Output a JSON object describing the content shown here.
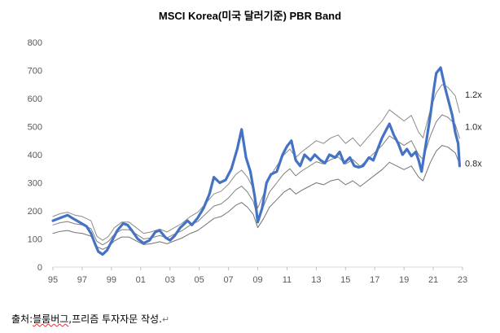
{
  "chart_data": {
    "type": "line",
    "title": "MSCI Korea(미국 달러기준) PBR Band",
    "xlabel": "",
    "ylabel": "",
    "xlim": [
      1995,
      2023
    ],
    "ylim": [
      0,
      800
    ],
    "x_ticks": [
      "95",
      "97",
      "99",
      "01",
      "03",
      "05",
      "07",
      "09",
      "11",
      "13",
      "15",
      "17",
      "19",
      "21",
      "23"
    ],
    "y_ticks": [
      "0",
      "100",
      "200",
      "300",
      "400",
      "500",
      "600",
      "700",
      "800"
    ],
    "grid": false,
    "band_labels": [
      "1.2x",
      "1.0x",
      "0.8x"
    ],
    "series": [
      {
        "name": "MSCI Korea",
        "color": "#4472C4",
        "points": [
          [
            1995.0,
            165
          ],
          [
            1995.5,
            175
          ],
          [
            1996.0,
            185
          ],
          [
            1996.3,
            175
          ],
          [
            1996.8,
            160
          ],
          [
            1997.3,
            145
          ],
          [
            1997.6,
            120
          ],
          [
            1997.9,
            80
          ],
          [
            1998.1,
            55
          ],
          [
            1998.4,
            45
          ],
          [
            1998.7,
            60
          ],
          [
            1999.0,
            90
          ],
          [
            1999.4,
            130
          ],
          [
            1999.8,
            155
          ],
          [
            2000.1,
            150
          ],
          [
            2000.4,
            130
          ],
          [
            2000.8,
            100
          ],
          [
            2001.2,
            85
          ],
          [
            2001.6,
            95
          ],
          [
            2002.0,
            125
          ],
          [
            2002.3,
            130
          ],
          [
            2002.7,
            105
          ],
          [
            2003.0,
            95
          ],
          [
            2003.3,
            110
          ],
          [
            2003.7,
            140
          ],
          [
            2004.2,
            165
          ],
          [
            2004.5,
            150
          ],
          [
            2004.9,
            175
          ],
          [
            2005.3,
            210
          ],
          [
            2005.7,
            260
          ],
          [
            2006.0,
            320
          ],
          [
            2006.4,
            300
          ],
          [
            2006.8,
            310
          ],
          [
            2007.2,
            350
          ],
          [
            2007.6,
            420
          ],
          [
            2007.9,
            490
          ],
          [
            2008.2,
            390
          ],
          [
            2008.5,
            340
          ],
          [
            2008.8,
            250
          ],
          [
            2009.0,
            160
          ],
          [
            2009.3,
            210
          ],
          [
            2009.6,
            300
          ],
          [
            2009.9,
            330
          ],
          [
            2010.3,
            340
          ],
          [
            2010.7,
            400
          ],
          [
            2011.0,
            430
          ],
          [
            2011.3,
            450
          ],
          [
            2011.6,
            380
          ],
          [
            2011.9,
            360
          ],
          [
            2012.2,
            400
          ],
          [
            2012.6,
            380
          ],
          [
            2012.9,
            400
          ],
          [
            2013.3,
            380
          ],
          [
            2013.6,
            370
          ],
          [
            2013.9,
            400
          ],
          [
            2014.3,
            390
          ],
          [
            2014.6,
            410
          ],
          [
            2014.9,
            370
          ],
          [
            2015.3,
            390
          ],
          [
            2015.6,
            360
          ],
          [
            2015.9,
            355
          ],
          [
            2016.2,
            360
          ],
          [
            2016.6,
            390
          ],
          [
            2016.9,
            380
          ],
          [
            2017.2,
            420
          ],
          [
            2017.5,
            460
          ],
          [
            2017.8,
            490
          ],
          [
            2018.0,
            510
          ],
          [
            2018.3,
            470
          ],
          [
            2018.6,
            440
          ],
          [
            2018.9,
            400
          ],
          [
            2019.2,
            420
          ],
          [
            2019.5,
            395
          ],
          [
            2019.8,
            410
          ],
          [
            2020.0,
            380
          ],
          [
            2020.2,
            340
          ],
          [
            2020.5,
            440
          ],
          [
            2020.8,
            540
          ],
          [
            2021.0,
            620
          ],
          [
            2021.2,
            690
          ],
          [
            2021.5,
            710
          ],
          [
            2021.8,
            640
          ],
          [
            2022.0,
            600
          ],
          [
            2022.3,
            540
          ],
          [
            2022.5,
            480
          ],
          [
            2022.7,
            440
          ],
          [
            2022.8,
            360
          ]
        ]
      },
      {
        "name": "1.2x",
        "color": "#8c8c8c",
        "points": [
          [
            1995.0,
            180
          ],
          [
            1995.5,
            190
          ],
          [
            1996.0,
            195
          ],
          [
            1996.5,
            185
          ],
          [
            1997.0,
            180
          ],
          [
            1997.6,
            165
          ],
          [
            1998.0,
            110
          ],
          [
            1998.4,
            95
          ],
          [
            1998.8,
            110
          ],
          [
            1999.2,
            140
          ],
          [
            1999.7,
            160
          ],
          [
            2000.2,
            160
          ],
          [
            2000.7,
            140
          ],
          [
            2001.2,
            120
          ],
          [
            2001.7,
            125
          ],
          [
            2002.3,
            135
          ],
          [
            2002.8,
            125
          ],
          [
            2003.3,
            140
          ],
          [
            2003.8,
            155
          ],
          [
            2004.4,
            180
          ],
          [
            2004.9,
            195
          ],
          [
            2005.5,
            230
          ],
          [
            2006.0,
            260
          ],
          [
            2006.5,
            270
          ],
          [
            2007.0,
            295
          ],
          [
            2007.5,
            330
          ],
          [
            2007.9,
            345
          ],
          [
            2008.3,
            320
          ],
          [
            2008.7,
            280
          ],
          [
            2009.0,
            210
          ],
          [
            2009.4,
            260
          ],
          [
            2009.8,
            320
          ],
          [
            2010.3,
            360
          ],
          [
            2010.8,
            400
          ],
          [
            2011.2,
            420
          ],
          [
            2011.6,
            390
          ],
          [
            2012.0,
            410
          ],
          [
            2012.5,
            430
          ],
          [
            2013.0,
            450
          ],
          [
            2013.5,
            440
          ],
          [
            2014.0,
            460
          ],
          [
            2014.5,
            470
          ],
          [
            2015.0,
            440
          ],
          [
            2015.5,
            460
          ],
          [
            2016.0,
            430
          ],
          [
            2016.5,
            460
          ],
          [
            2017.0,
            490
          ],
          [
            2017.5,
            520
          ],
          [
            2018.0,
            560
          ],
          [
            2018.5,
            540
          ],
          [
            2019.0,
            520
          ],
          [
            2019.5,
            540
          ],
          [
            2020.0,
            480
          ],
          [
            2020.3,
            460
          ],
          [
            2020.8,
            560
          ],
          [
            2021.2,
            620
          ],
          [
            2021.6,
            650
          ],
          [
            2022.0,
            640
          ],
          [
            2022.5,
            610
          ],
          [
            2022.8,
            550
          ]
        ]
      },
      {
        "name": "1.0x",
        "color": "#7f7f7f",
        "points": [
          [
            1995.0,
            150
          ],
          [
            1995.5,
            158
          ],
          [
            1996.0,
            162
          ],
          [
            1996.5,
            154
          ],
          [
            1997.0,
            150
          ],
          [
            1997.6,
            137
          ],
          [
            1998.0,
            92
          ],
          [
            1998.4,
            79
          ],
          [
            1998.8,
            92
          ],
          [
            1999.2,
            117
          ],
          [
            1999.7,
            133
          ],
          [
            2000.2,
            133
          ],
          [
            2000.7,
            117
          ],
          [
            2001.2,
            100
          ],
          [
            2001.7,
            104
          ],
          [
            2002.3,
            112
          ],
          [
            2002.8,
            104
          ],
          [
            2003.3,
            117
          ],
          [
            2003.8,
            129
          ],
          [
            2004.4,
            150
          ],
          [
            2004.9,
            162
          ],
          [
            2005.5,
            192
          ],
          [
            2006.0,
            217
          ],
          [
            2006.5,
            225
          ],
          [
            2007.0,
            246
          ],
          [
            2007.5,
            275
          ],
          [
            2007.9,
            288
          ],
          [
            2008.3,
            267
          ],
          [
            2008.7,
            233
          ],
          [
            2009.0,
            175
          ],
          [
            2009.4,
            217
          ],
          [
            2009.8,
            267
          ],
          [
            2010.3,
            300
          ],
          [
            2010.8,
            333
          ],
          [
            2011.2,
            350
          ],
          [
            2011.6,
            325
          ],
          [
            2012.0,
            342
          ],
          [
            2012.5,
            358
          ],
          [
            2013.0,
            375
          ],
          [
            2013.5,
            367
          ],
          [
            2014.0,
            383
          ],
          [
            2014.5,
            392
          ],
          [
            2015.0,
            367
          ],
          [
            2015.5,
            383
          ],
          [
            2016.0,
            358
          ],
          [
            2016.5,
            383
          ],
          [
            2017.0,
            408
          ],
          [
            2017.5,
            433
          ],
          [
            2018.0,
            467
          ],
          [
            2018.5,
            450
          ],
          [
            2019.0,
            433
          ],
          [
            2019.5,
            450
          ],
          [
            2020.0,
            400
          ],
          [
            2020.3,
            383
          ],
          [
            2020.8,
            467
          ],
          [
            2021.2,
            517
          ],
          [
            2021.6,
            542
          ],
          [
            2022.0,
            533
          ],
          [
            2022.5,
            508
          ],
          [
            2022.8,
            458
          ]
        ]
      },
      {
        "name": "0.8x",
        "color": "#737373",
        "points": [
          [
            1995.0,
            120
          ],
          [
            1995.5,
            127
          ],
          [
            1996.0,
            130
          ],
          [
            1996.5,
            123
          ],
          [
            1997.0,
            120
          ],
          [
            1997.6,
            110
          ],
          [
            1998.0,
            73
          ],
          [
            1998.4,
            63
          ],
          [
            1998.8,
            73
          ],
          [
            1999.2,
            93
          ],
          [
            1999.7,
            107
          ],
          [
            2000.2,
            107
          ],
          [
            2000.7,
            93
          ],
          [
            2001.2,
            80
          ],
          [
            2001.7,
            83
          ],
          [
            2002.3,
            90
          ],
          [
            2002.8,
            83
          ],
          [
            2003.3,
            93
          ],
          [
            2003.8,
            103
          ],
          [
            2004.4,
            120
          ],
          [
            2004.9,
            130
          ],
          [
            2005.5,
            153
          ],
          [
            2006.0,
            173
          ],
          [
            2006.5,
            180
          ],
          [
            2007.0,
            197
          ],
          [
            2007.5,
            220
          ],
          [
            2007.9,
            230
          ],
          [
            2008.3,
            213
          ],
          [
            2008.7,
            187
          ],
          [
            2009.0,
            140
          ],
          [
            2009.4,
            173
          ],
          [
            2009.8,
            213
          ],
          [
            2010.3,
            240
          ],
          [
            2010.8,
            267
          ],
          [
            2011.2,
            280
          ],
          [
            2011.6,
            260
          ],
          [
            2012.0,
            273
          ],
          [
            2012.5,
            287
          ],
          [
            2013.0,
            300
          ],
          [
            2013.5,
            293
          ],
          [
            2014.0,
            307
          ],
          [
            2014.5,
            313
          ],
          [
            2015.0,
            293
          ],
          [
            2015.5,
            307
          ],
          [
            2016.0,
            287
          ],
          [
            2016.5,
            307
          ],
          [
            2017.0,
            327
          ],
          [
            2017.5,
            347
          ],
          [
            2018.0,
            373
          ],
          [
            2018.5,
            360
          ],
          [
            2019.0,
            347
          ],
          [
            2019.5,
            360
          ],
          [
            2020.0,
            320
          ],
          [
            2020.3,
            307
          ],
          [
            2020.8,
            373
          ],
          [
            2021.2,
            413
          ],
          [
            2021.6,
            433
          ],
          [
            2022.0,
            427
          ],
          [
            2022.5,
            407
          ],
          [
            2022.8,
            367
          ]
        ]
      }
    ]
  },
  "source_text": "출처:블룸버그,프리즘 투자자문 작성.",
  "source_underlined": "블룸버그",
  "paragraph_mark": "↵"
}
